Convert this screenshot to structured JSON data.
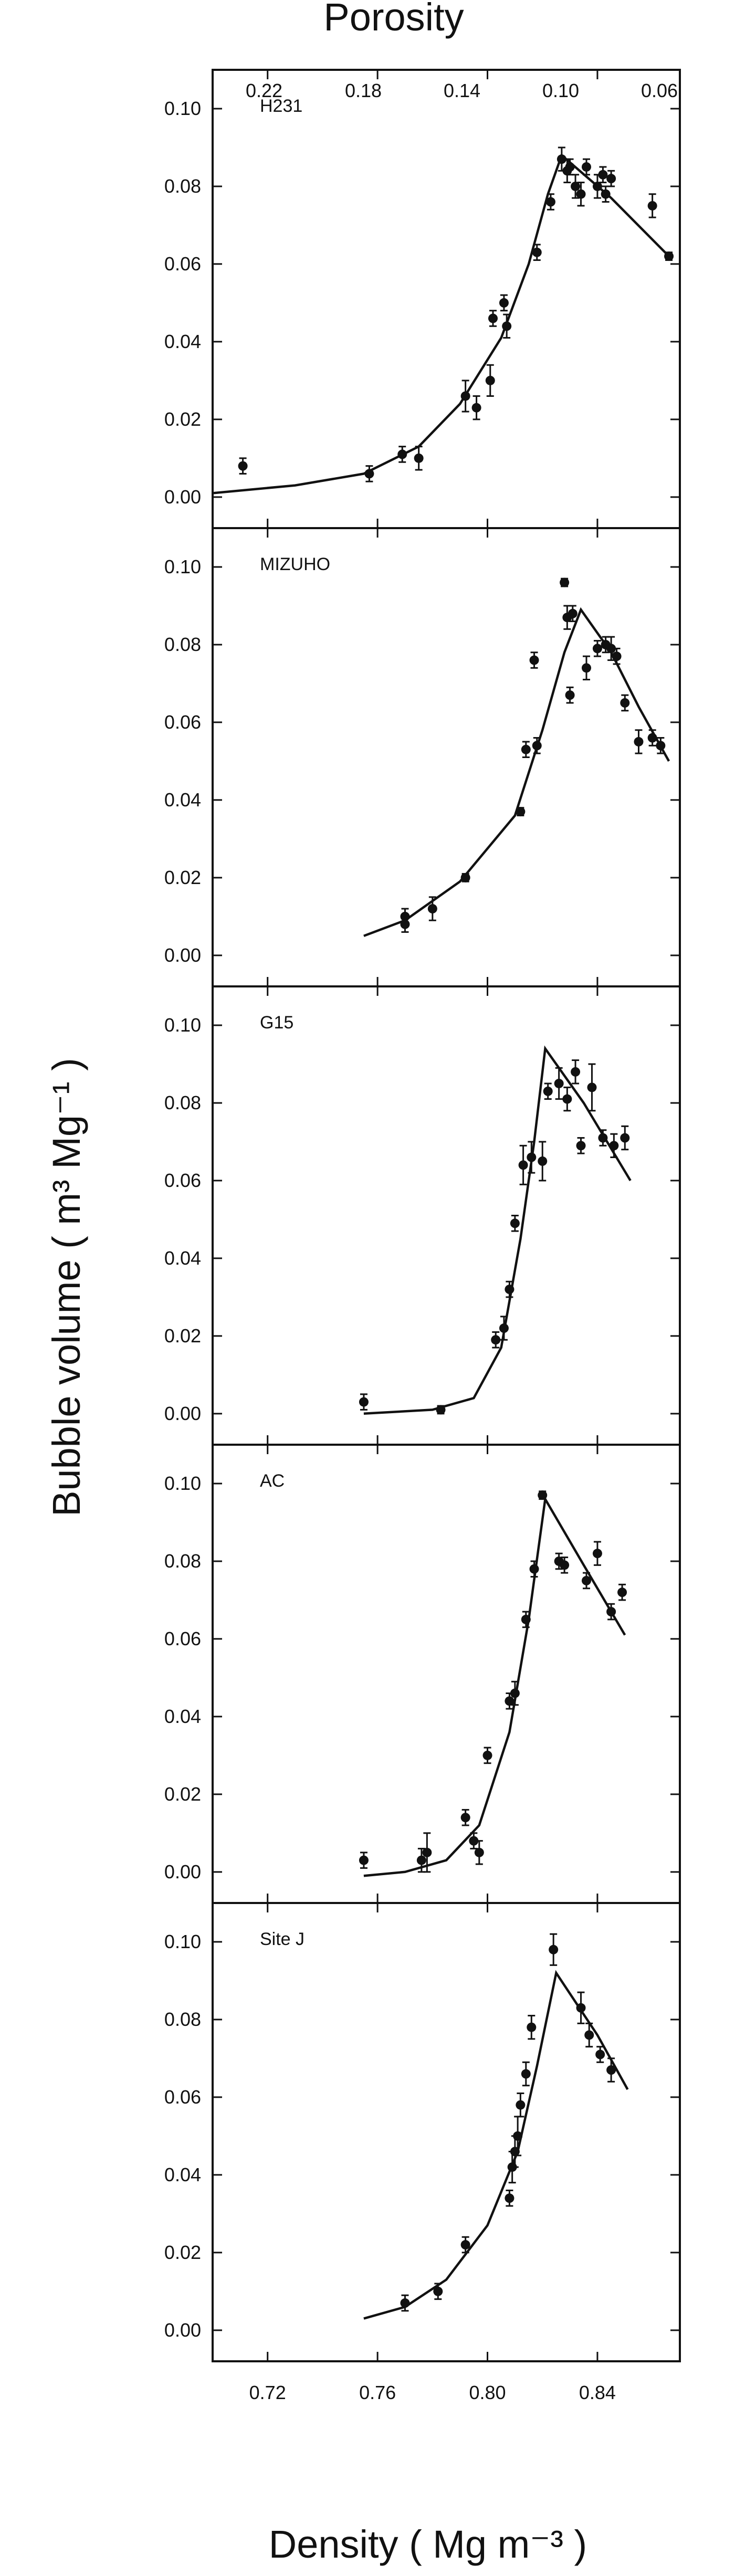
{
  "chart_data": {
    "type": "scatter",
    "title": "",
    "xlabel": "Density ( Mg m⁻³ )",
    "x2label": "Porosity",
    "ylabel": "Bubble volume ( m³ Mg⁻¹ )",
    "xlim": [
      0.7,
      0.87
    ],
    "ylim": [
      -0.008,
      0.11
    ],
    "x_ticks": [
      0.72,
      0.76,
      0.8,
      0.84
    ],
    "x_tick_labels": [
      "0.72",
      "0.76",
      "0.80",
      "0.84"
    ],
    "top_ticks": [
      0.22,
      0.18,
      0.14,
      0.1,
      0.06
    ],
    "top_tick_labels": [
      "0.22",
      "0.18",
      "0.14",
      "0.10",
      "0.06"
    ],
    "y_ticks": [
      0.0,
      0.02,
      0.04,
      0.06,
      0.08,
      0.1
    ],
    "y_tick_labels": [
      "0.00",
      "0.02",
      "0.04",
      "0.06",
      "0.08",
      "0.10"
    ],
    "grid": false,
    "panels": [
      {
        "name": "H231",
        "points": [
          [
            0.711,
            0.008
          ],
          [
            0.757,
            0.006
          ],
          [
            0.769,
            0.011
          ],
          [
            0.775,
            0.01
          ],
          [
            0.792,
            0.026
          ],
          [
            0.796,
            0.023
          ],
          [
            0.801,
            0.03
          ],
          [
            0.802,
            0.046
          ],
          [
            0.806,
            0.05
          ],
          [
            0.807,
            0.044
          ],
          [
            0.818,
            0.063
          ],
          [
            0.823,
            0.076
          ],
          [
            0.827,
            0.087
          ],
          [
            0.829,
            0.084
          ],
          [
            0.83,
            0.085
          ],
          [
            0.832,
            0.08
          ],
          [
            0.834,
            0.078
          ],
          [
            0.836,
            0.085
          ],
          [
            0.84,
            0.08
          ],
          [
            0.842,
            0.083
          ],
          [
            0.843,
            0.078
          ],
          [
            0.845,
            0.082
          ],
          [
            0.86,
            0.075
          ],
          [
            0.866,
            0.062
          ]
        ],
        "errors": [
          0.002,
          0.002,
          0.002,
          0.003,
          0.004,
          0.003,
          0.004,
          0.002,
          0.002,
          0.003,
          0.002,
          0.002,
          0.003,
          0.003,
          0.002,
          0.003,
          0.003,
          0.002,
          0.003,
          0.002,
          0.002,
          0.002,
          0.003,
          0.001
        ],
        "curve": [
          [
            0.7,
            0.001
          ],
          [
            0.73,
            0.003
          ],
          [
            0.755,
            0.006
          ],
          [
            0.775,
            0.013
          ],
          [
            0.79,
            0.024
          ],
          [
            0.805,
            0.041
          ],
          [
            0.815,
            0.06
          ],
          [
            0.822,
            0.078
          ],
          [
            0.827,
            0.088
          ],
          [
            0.845,
            0.077
          ],
          [
            0.866,
            0.062
          ]
        ]
      },
      {
        "name": "MIZUHO",
        "points": [
          [
            0.77,
            0.008
          ],
          [
            0.77,
            0.01
          ],
          [
            0.78,
            0.012
          ],
          [
            0.792,
            0.02
          ],
          [
            0.812,
            0.037
          ],
          [
            0.814,
            0.053
          ],
          [
            0.817,
            0.076
          ],
          [
            0.818,
            0.054
          ],
          [
            0.828,
            0.096
          ],
          [
            0.829,
            0.087
          ],
          [
            0.83,
            0.067
          ],
          [
            0.831,
            0.088
          ],
          [
            0.836,
            0.074
          ],
          [
            0.84,
            0.079
          ],
          [
            0.843,
            0.08
          ],
          [
            0.845,
            0.079
          ],
          [
            0.847,
            0.077
          ],
          [
            0.85,
            0.065
          ],
          [
            0.855,
            0.055
          ],
          [
            0.86,
            0.056
          ],
          [
            0.863,
            0.054
          ]
        ],
        "errors": [
          0.002,
          0.002,
          0.003,
          0.001,
          0.001,
          0.002,
          0.002,
          0.002,
          0.001,
          0.003,
          0.002,
          0.002,
          0.003,
          0.002,
          0.002,
          0.003,
          0.002,
          0.002,
          0.003,
          0.002,
          0.002
        ],
        "curve": [
          [
            0.755,
            0.005
          ],
          [
            0.77,
            0.009
          ],
          [
            0.79,
            0.019
          ],
          [
            0.81,
            0.036
          ],
          [
            0.82,
            0.058
          ],
          [
            0.828,
            0.078
          ],
          [
            0.834,
            0.089
          ],
          [
            0.845,
            0.078
          ],
          [
            0.855,
            0.064
          ],
          [
            0.866,
            0.05
          ]
        ]
      },
      {
        "name": "G15",
        "points": [
          [
            0.755,
            0.003
          ],
          [
            0.783,
            0.001
          ],
          [
            0.803,
            0.019
          ],
          [
            0.806,
            0.022
          ],
          [
            0.808,
            0.032
          ],
          [
            0.81,
            0.049
          ],
          [
            0.813,
            0.064
          ],
          [
            0.816,
            0.066
          ],
          [
            0.82,
            0.065
          ],
          [
            0.822,
            0.083
          ],
          [
            0.826,
            0.085
          ],
          [
            0.829,
            0.081
          ],
          [
            0.832,
            0.088
          ],
          [
            0.834,
            0.069
          ],
          [
            0.838,
            0.084
          ],
          [
            0.842,
            0.071
          ],
          [
            0.846,
            0.069
          ],
          [
            0.85,
            0.071
          ]
        ],
        "errors": [
          0.002,
          0.001,
          0.002,
          0.003,
          0.002,
          0.002,
          0.005,
          0.004,
          0.005,
          0.002,
          0.004,
          0.003,
          0.003,
          0.002,
          0.006,
          0.002,
          0.003,
          0.003
        ],
        "curve": [
          [
            0.755,
            0.0
          ],
          [
            0.78,
            0.001
          ],
          [
            0.795,
            0.004
          ],
          [
            0.805,
            0.017
          ],
          [
            0.812,
            0.045
          ],
          [
            0.817,
            0.07
          ],
          [
            0.821,
            0.094
          ],
          [
            0.835,
            0.08
          ],
          [
            0.852,
            0.06
          ]
        ]
      },
      {
        "name": "AC",
        "points": [
          [
            0.755,
            0.003
          ],
          [
            0.776,
            0.003
          ],
          [
            0.778,
            0.005
          ],
          [
            0.792,
            0.014
          ],
          [
            0.795,
            0.008
          ],
          [
            0.797,
            0.005
          ],
          [
            0.8,
            0.03
          ],
          [
            0.808,
            0.044
          ],
          [
            0.81,
            0.046
          ],
          [
            0.814,
            0.065
          ],
          [
            0.817,
            0.078
          ],
          [
            0.82,
            0.097
          ],
          [
            0.826,
            0.08
          ],
          [
            0.828,
            0.079
          ],
          [
            0.836,
            0.075
          ],
          [
            0.84,
            0.082
          ],
          [
            0.845,
            0.067
          ],
          [
            0.849,
            0.072
          ]
        ],
        "errors": [
          0.002,
          0.003,
          0.005,
          0.002,
          0.002,
          0.003,
          0.002,
          0.002,
          0.003,
          0.002,
          0.002,
          0.001,
          0.002,
          0.002,
          0.002,
          0.003,
          0.002,
          0.002
        ],
        "curve": [
          [
            0.755,
            -0.001
          ],
          [
            0.77,
            0.0
          ],
          [
            0.785,
            0.003
          ],
          [
            0.797,
            0.012
          ],
          [
            0.808,
            0.036
          ],
          [
            0.815,
            0.065
          ],
          [
            0.821,
            0.096
          ],
          [
            0.835,
            0.079
          ],
          [
            0.85,
            0.061
          ]
        ]
      },
      {
        "name": "Site J",
        "points": [
          [
            0.77,
            0.007
          ],
          [
            0.782,
            0.01
          ],
          [
            0.792,
            0.022
          ],
          [
            0.808,
            0.034
          ],
          [
            0.809,
            0.042
          ],
          [
            0.81,
            0.046
          ],
          [
            0.811,
            0.05
          ],
          [
            0.812,
            0.058
          ],
          [
            0.814,
            0.066
          ],
          [
            0.816,
            0.078
          ],
          [
            0.824,
            0.098
          ],
          [
            0.834,
            0.083
          ],
          [
            0.837,
            0.076
          ],
          [
            0.841,
            0.071
          ],
          [
            0.845,
            0.067
          ]
        ],
        "errors": [
          0.002,
          0.002,
          0.002,
          0.002,
          0.004,
          0.004,
          0.005,
          0.003,
          0.003,
          0.003,
          0.004,
          0.004,
          0.003,
          0.002,
          0.003
        ],
        "curve": [
          [
            0.755,
            0.003
          ],
          [
            0.77,
            0.006
          ],
          [
            0.785,
            0.013
          ],
          [
            0.8,
            0.027
          ],
          [
            0.811,
            0.046
          ],
          [
            0.818,
            0.068
          ],
          [
            0.825,
            0.092
          ],
          [
            0.84,
            0.076
          ],
          [
            0.851,
            0.062
          ]
        ]
      }
    ]
  }
}
